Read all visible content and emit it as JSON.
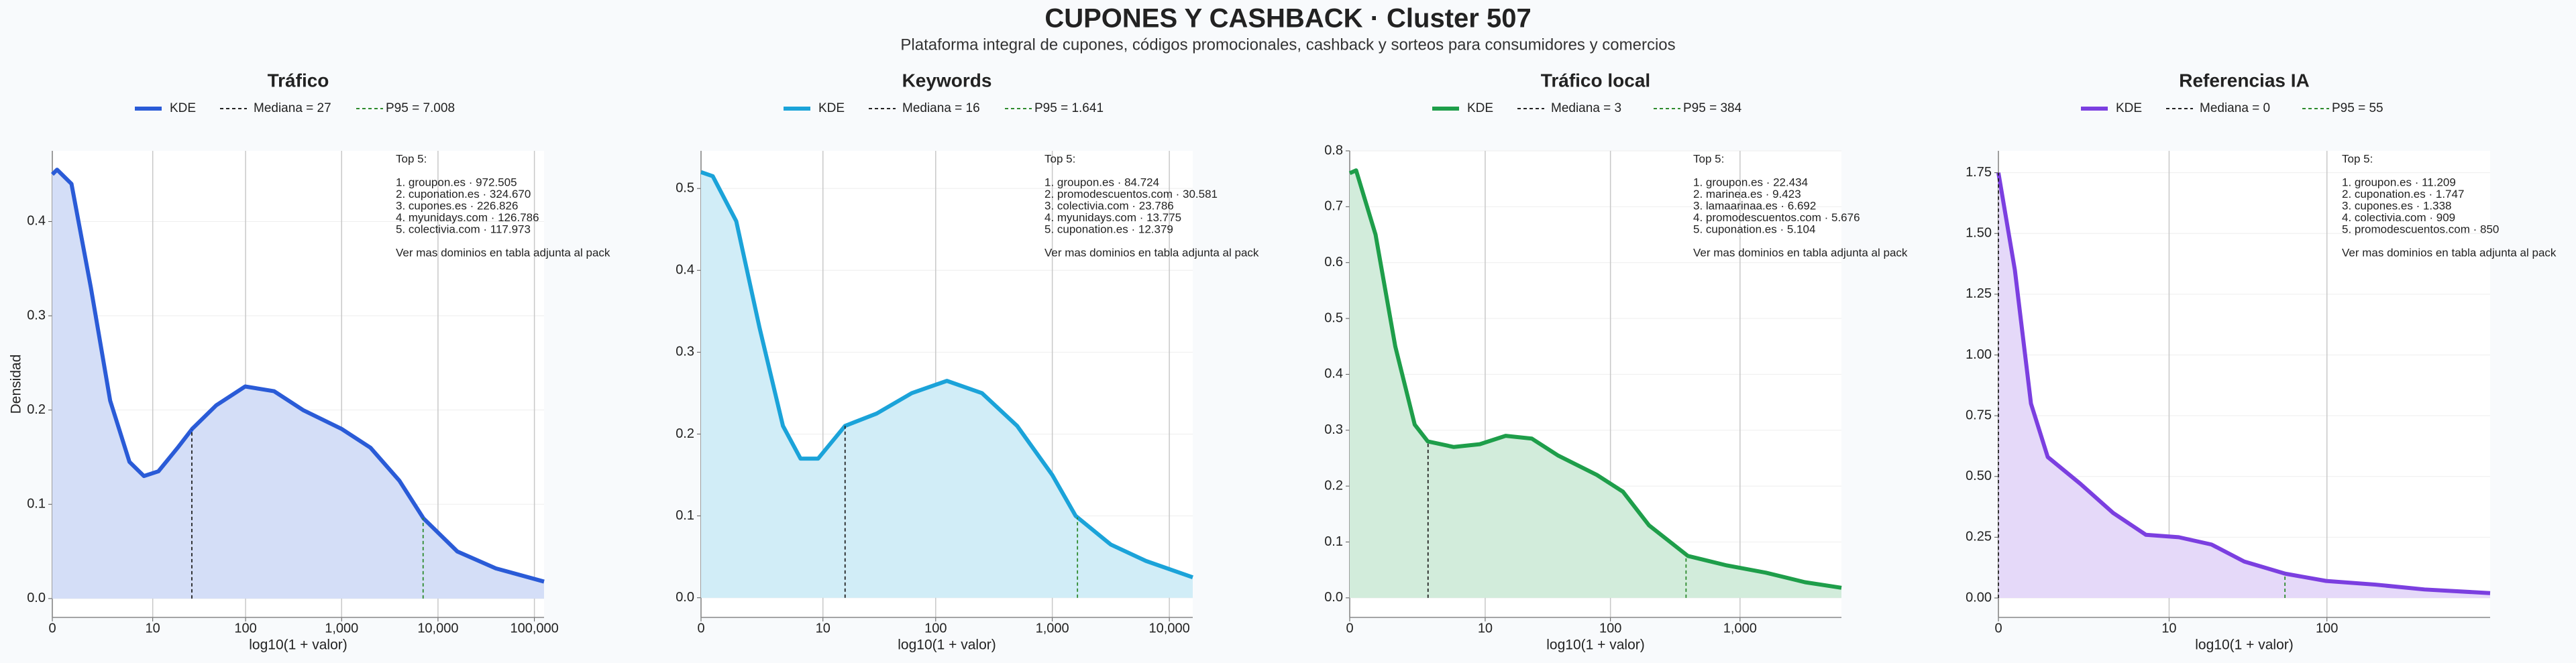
{
  "header": {
    "title": "CUPONES Y CASHBACK · Cluster 507",
    "subtitle": "Plataforma integral de cupones, códigos promocionales, cashback y sorteos para consumidores y comercios"
  },
  "chart_data": [
    {
      "type": "area",
      "title": "Tráfico",
      "x_label": "log10(1 + valor)",
      "y_label": "Densidad",
      "xscale": "log1p",
      "x": [
        0,
        0.12,
        0.58,
        1.51,
        2.98,
        5.31,
        7.91,
        11.6,
        18.95,
        27.2,
        49.1,
        99,
        198.5,
        397,
        999,
        1994,
        3980,
        7078,
        15848,
        39810,
        125892
      ],
      "series": [
        {
          "name": "KDE",
          "color": "#2a5bd7",
          "values": [
            0.45,
            0.455,
            0.44,
            0.33,
            0.21,
            0.145,
            0.13,
            0.135,
            0.16,
            0.18,
            0.205,
            0.225,
            0.22,
            0.2,
            0.18,
            0.16,
            0.125,
            0.085,
            0.05,
            0.032,
            0.018
          ]
        }
      ],
      "median": {
        "label": "Mediana = 27",
        "value": 27,
        "color": "#222222"
      },
      "p95": {
        "label": "P95 = 7.008",
        "value": 7008,
        "color": "#2e8b2e"
      },
      "xlim": [
        0,
        125892
      ],
      "xticks": [
        0,
        10,
        100,
        {
          "value": 1000,
          "label": "1,000"
        },
        {
          "value": 10000,
          "label": "10,000"
        },
        {
          "value": 100000,
          "label": "100,000"
        }
      ],
      "ylim": [
        -0.02,
        0.475
      ],
      "yticks": [
        {
          "value": 0,
          "label": "0.0"
        },
        0.1,
        0.2,
        0.3,
        0.4
      ],
      "grid": true,
      "annotation": {
        "heading": "Top 5:",
        "lines": [
          "1. groupon.es · 972.505",
          "2. cuponation.es · 324.670",
          "3. cupones.es · 226.826",
          "4. myunidays.com · 126.786",
          "5. colectivia.com · 117.973"
        ],
        "footer": "Ver mas dominios en tabla adjunta al pack"
      }
    },
    {
      "type": "area",
      "title": "Keywords",
      "x_label": "log10(1 + valor)",
      "xscale": "log1p",
      "x": [
        0,
        0.26,
        1,
        2.16,
        4.01,
        6.08,
        9,
        16,
        30.6,
        62.1,
        125,
        250,
        500,
        999,
        1584,
        3161,
        6309,
        15848
      ],
      "series": [
        {
          "name": "KDE",
          "color": "#1ba3d9",
          "values": [
            0.52,
            0.515,
            0.46,
            0.33,
            0.21,
            0.17,
            0.17,
            0.21,
            0.225,
            0.25,
            0.265,
            0.25,
            0.21,
            0.15,
            0.1,
            0.065,
            0.045,
            0.025
          ]
        }
      ],
      "median": {
        "label": "Mediana = 16",
        "value": 16,
        "color": "#222222"
      },
      "p95": {
        "label": "P95 = 1.641",
        "value": 1641,
        "color": "#2e8b2e"
      },
      "xlim": [
        0,
        15848
      ],
      "xticks": [
        0,
        10,
        100,
        {
          "value": 1000,
          "label": "1,000"
        },
        {
          "value": 10000,
          "label": "10,000"
        }
      ],
      "ylim": [
        -0.024,
        0.546
      ],
      "yticks": [
        {
          "value": 0,
          "label": "0.0"
        },
        0.1,
        0.2,
        0.3,
        0.4,
        0.5
      ],
      "grid": true,
      "annotation": {
        "heading": "Top 5:",
        "lines": [
          "1. groupon.es · 84.724",
          "2. promodescuentos.com · 30.581",
          "3. colectivia.com · 23.786",
          "4. myunidays.com · 13.775",
          "5. cuponation.es · 12.379"
        ],
        "footer": "Ver mas dominios en tabla adjunta al pack"
      }
    },
    {
      "type": "area",
      "title": "Tráfico local",
      "x_label": "log10(1 + valor)",
      "xscale": "log1p",
      "x": [
        0,
        0.12,
        0.58,
        1.24,
        2.16,
        2.98,
        5.31,
        9,
        14.8,
        24.1,
        38.8,
        78.4,
        125,
        198.5,
        397,
        793,
        1584,
        3161,
        6025
      ],
      "series": [
        {
          "name": "KDE",
          "color": "#1e9e4a",
          "values": [
            0.76,
            0.765,
            0.65,
            0.45,
            0.31,
            0.28,
            0.27,
            0.275,
            0.29,
            0.285,
            0.255,
            0.22,
            0.19,
            0.13,
            0.075,
            0.058,
            0.045,
            0.028,
            0.018
          ]
        }
      ],
      "median": {
        "label": "Mediana = 3",
        "value": 3,
        "color": "#222222"
      },
      "p95": {
        "label": "P95 = 384",
        "value": 384,
        "color": "#2e8b2e"
      },
      "xlim": [
        0,
        6025
      ],
      "xticks": [
        0,
        10,
        100,
        {
          "value": 1000,
          "label": "1,000"
        }
      ],
      "ylim": [
        -0.035,
        0.8
      ],
      "yticks": [
        {
          "value": 0,
          "label": "0.0"
        },
        0.1,
        0.2,
        0.3,
        0.4,
        0.5,
        0.6,
        0.7,
        0.8
      ],
      "grid": true,
      "annotation": {
        "heading": "Top 5:",
        "lines": [
          "1. groupon.es · 22.434",
          "2. marinea.es · 9.423",
          "3. lamaarinaa.es · 6.692",
          "4. promodescuentos.com · 5.676",
          "5. cuponation.es · 5.104"
        ],
        "footer": "Ver mas dominios en tabla adjunta al pack"
      }
    },
    {
      "type": "area",
      "title": "Referencias IA",
      "x_label": "log10(1 + valor)",
      "xscale": "log1p",
      "x": [
        0,
        0.26,
        0.58,
        1,
        2.16,
        4.01,
        6.94,
        11.6,
        18.95,
        30.6,
        55.2,
        99,
        198.5,
        397,
        999
      ],
      "series": [
        {
          "name": "KDE",
          "color": "#7b3fe0",
          "values": [
            1.75,
            1.35,
            0.8,
            0.58,
            0.47,
            0.35,
            0.26,
            0.25,
            0.22,
            0.15,
            0.1,
            0.07,
            0.055,
            0.035,
            0.02
          ]
        }
      ],
      "median": {
        "label": "Mediana = 0",
        "value": 0,
        "color": "#222222"
      },
      "p95": {
        "label": "P95 = 55",
        "value": 55,
        "color": "#2e8b2e"
      },
      "xlim": [
        0,
        999
      ],
      "xticks": [
        0,
        10,
        100
      ],
      "ylim": [
        -0.08,
        1.84
      ],
      "yticks": [
        {
          "value": 0,
          "label": "0.00"
        },
        0.25,
        {
          "value": 0.5,
          "label": "0.50"
        },
        0.75,
        {
          "value": 1,
          "label": "1.00"
        },
        1.25,
        {
          "value": 1.5,
          "label": "1.50"
        },
        1.75
      ],
      "grid": true,
      "annotation": {
        "heading": "Top 5:",
        "lines": [
          "1. groupon.es · 11.209",
          "2. cuponation.es · 1.747",
          "3. cupones.es · 1.338",
          "4. colectivia.com · 909",
          "5. promodescuentos.com · 850"
        ],
        "footer": "Ver mas dominios en tabla adjunta al pack"
      }
    }
  ]
}
